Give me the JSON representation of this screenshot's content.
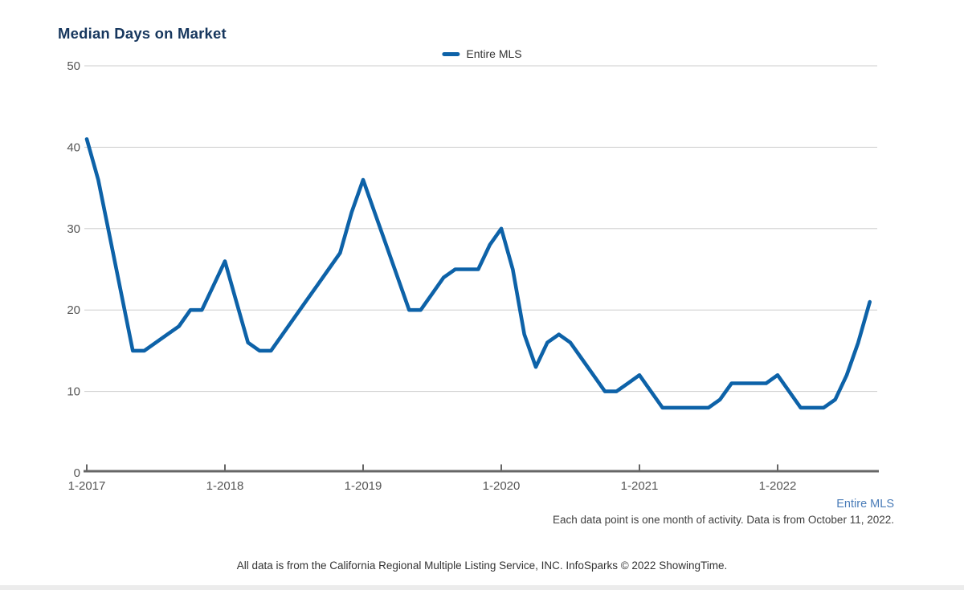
{
  "title": "Median Days on Market",
  "legend": {
    "label": "Entire MLS",
    "color": "#0d62a8"
  },
  "footer": {
    "series_link": "Entire MLS",
    "footnote": "Each data point is one month of activity. Data is from October 11, 2022.",
    "attribution": "All data is from the California Regional Multiple Listing Service, INC. InfoSparks © 2022 ShowingTime."
  },
  "colors": {
    "line": "#0d62a8",
    "title_text": "#17375e",
    "link_text": "#4a7cb8",
    "axis_text": "#555555",
    "grid_line": "#cccccc",
    "axis_line": "#666666"
  },
  "chart_data": {
    "type": "line",
    "title": "Median Days on Market",
    "xlabel": "",
    "ylabel": "",
    "ylim": [
      0,
      50
    ],
    "yticks": [
      0,
      10,
      20,
      30,
      40,
      50
    ],
    "x_tick_labels": [
      "1-2017",
      "1-2018",
      "1-2019",
      "1-2020",
      "1-2021",
      "1-2022"
    ],
    "grid": "horizontal",
    "legend_position": "top-center",
    "categories": [
      "1-2017",
      "2-2017",
      "3-2017",
      "4-2017",
      "5-2017",
      "6-2017",
      "7-2017",
      "8-2017",
      "9-2017",
      "10-2017",
      "11-2017",
      "12-2017",
      "1-2018",
      "2-2018",
      "3-2018",
      "4-2018",
      "5-2018",
      "6-2018",
      "7-2018",
      "8-2018",
      "9-2018",
      "10-2018",
      "11-2018",
      "12-2018",
      "1-2019",
      "2-2019",
      "3-2019",
      "4-2019",
      "5-2019",
      "6-2019",
      "7-2019",
      "8-2019",
      "9-2019",
      "10-2019",
      "11-2019",
      "12-2019",
      "1-2020",
      "2-2020",
      "3-2020",
      "4-2020",
      "5-2020",
      "6-2020",
      "7-2020",
      "8-2020",
      "9-2020",
      "10-2020",
      "11-2020",
      "12-2020",
      "1-2021",
      "2-2021",
      "3-2021",
      "4-2021",
      "5-2021",
      "6-2021",
      "7-2021",
      "8-2021",
      "9-2021",
      "10-2021",
      "11-2021",
      "12-2021",
      "1-2022",
      "2-2022",
      "3-2022",
      "4-2022",
      "5-2022",
      "6-2022",
      "7-2022",
      "8-2022",
      "9-2022"
    ],
    "series": [
      {
        "name": "Entire MLS",
        "color": "#0d62a8",
        "values": [
          41,
          36,
          29,
          22,
          15,
          15,
          16,
          17,
          18,
          20,
          20,
          23,
          26,
          21,
          16,
          15,
          15,
          17,
          19,
          21,
          23,
          25,
          27,
          32,
          36,
          32,
          28,
          24,
          20,
          20,
          22,
          24,
          25,
          25,
          25,
          28,
          30,
          25,
          17,
          13,
          16,
          17,
          16,
          14,
          12,
          10,
          10,
          11,
          12,
          10,
          8,
          8,
          8,
          8,
          8,
          9,
          11,
          11,
          11,
          11,
          12,
          10,
          8,
          8,
          8,
          9,
          12,
          16,
          21
        ]
      }
    ]
  }
}
